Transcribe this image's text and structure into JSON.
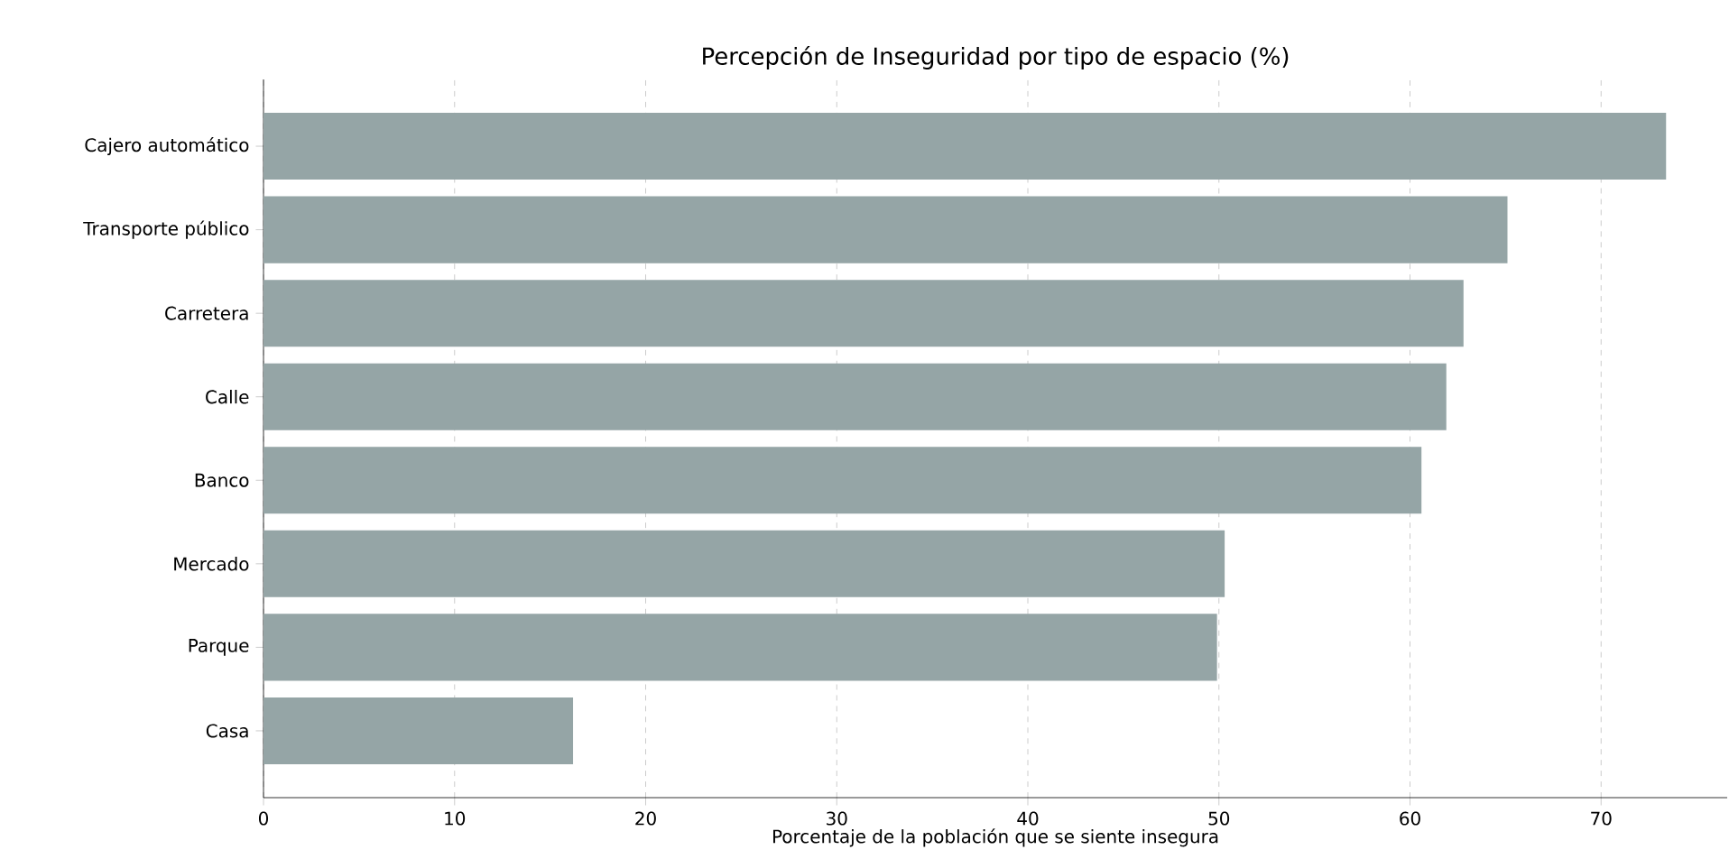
{
  "chart_data": {
    "type": "bar",
    "orientation": "horizontal",
    "title": "Percepción de Inseguridad por tipo de espacio (%)",
    "xlabel": "Porcentaje de la población que se siente insegura",
    "categories": [
      "Cajero automático",
      "Transporte público",
      "Carretera",
      "Calle",
      "Banco",
      "Mercado",
      "Parque",
      "Casa"
    ],
    "values": [
      73.4,
      65.1,
      62.8,
      61.9,
      60.6,
      50.3,
      49.9,
      16.2
    ],
    "color": "#95a5a6",
    "xlim": [
      0,
      76.6
    ],
    "xticks": [
      0,
      10,
      20,
      30,
      40,
      50,
      60,
      70
    ],
    "grid": "x"
  }
}
